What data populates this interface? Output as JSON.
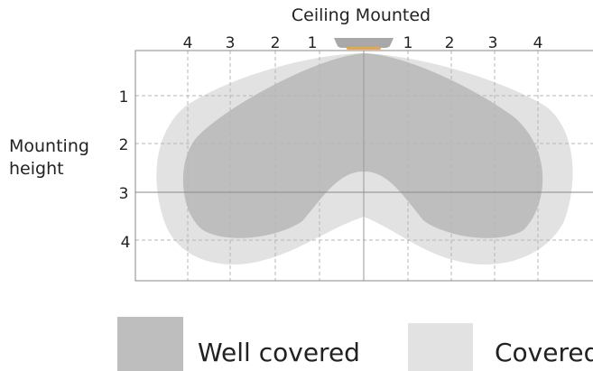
{
  "title": "Ceiling Mounted",
  "y_axis_label": [
    "Mounting",
    "height"
  ],
  "top_axis_labels": [
    "4",
    "3",
    "2",
    "1",
    "1",
    "2",
    "3",
    "4"
  ],
  "left_axis_labels": [
    "1",
    "2",
    "3",
    "4"
  ],
  "legend": [
    {
      "label": "Well covered",
      "color": "#bebebe"
    },
    {
      "label": "Covered",
      "color": "#e2e2e2"
    }
  ],
  "colors": {
    "grid": "#b5b5b5",
    "frame": "#888888",
    "sensor": "#a8a8a8",
    "sensor_lens": "#e8a64a"
  }
}
